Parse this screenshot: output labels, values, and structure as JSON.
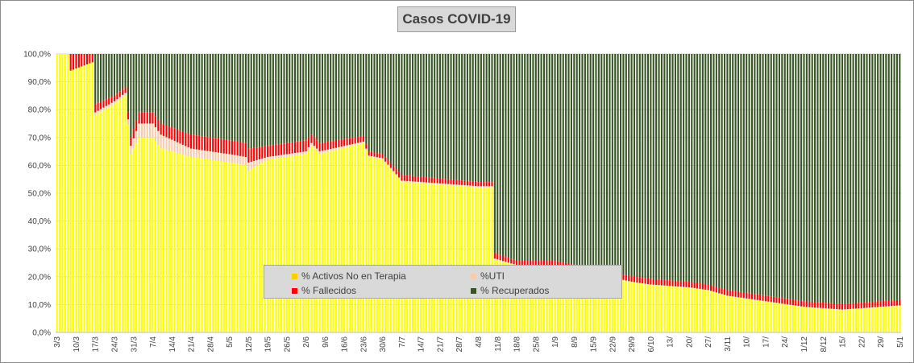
{
  "chart_data": {
    "type": "bar",
    "stacked": true,
    "normalized": true,
    "title": "Casos  COVID-19",
    "xlabel": "",
    "ylabel": "",
    "ylim": [
      0,
      100
    ],
    "yticks": [
      "0,0%",
      "10,0%",
      "20,0%",
      "30,0%",
      "40,0%",
      "50,0%",
      "60,0%",
      "70,0%",
      "80,0%",
      "90,0%",
      "100,0%"
    ],
    "x_tick_labels": [
      "3/3",
      "10/3",
      "17/3",
      "24/3",
      "31/3",
      "7/4",
      "14/4",
      "21/4",
      "28/4",
      "5/5",
      "12/5",
      "19/5",
      "26/5",
      "2/6",
      "9/6",
      "16/6",
      "23/6",
      "30/6",
      "7/7",
      "14/7",
      "21/7",
      "28/7",
      "4/8",
      "11/8",
      "18/8",
      "25/8",
      "1/9",
      "8/9",
      "15/9",
      "22/9",
      "29/9",
      "6/10",
      "13/",
      "20/",
      "27/",
      "3/11",
      "10/",
      "17/",
      "24/",
      "1/12",
      "8/12",
      "15/",
      "22/",
      "29/",
      "5/1"
    ],
    "days_per_tick": 7,
    "series": [
      {
        "name": "% Activos No en Terapia",
        "color": "#ffff00"
      },
      {
        "name": "%UTI",
        "color": "#f8cbad"
      },
      {
        "name": "% Fallecidos",
        "color": "#ff0000"
      },
      {
        "name": "% Recuperados",
        "color": "#375623"
      }
    ],
    "control_points": [
      {
        "x": "3/3",
        "activos": 100,
        "uti": 0,
        "fallecidos": 0
      },
      {
        "x": "7/3",
        "activos": 100,
        "uti": 0,
        "fallecidos": 0
      },
      {
        "x": "8/3",
        "activos": 94,
        "uti": 0,
        "fallecidos": 6
      },
      {
        "x": "16/3",
        "activos": 97,
        "uti": 0,
        "fallecidos": 3
      },
      {
        "x": "17/3",
        "activos": 78,
        "uti": 1,
        "fallecidos": 3
      },
      {
        "x": "24/3",
        "activos": 82,
        "uti": 1,
        "fallecidos": 2
      },
      {
        "x": "28/3",
        "activos": 85,
        "uti": 1,
        "fallecidos": 2
      },
      {
        "x": "30/3",
        "activos": 64,
        "uti": 3,
        "fallecidos": 3
      },
      {
        "x": "2/4",
        "activos": 70,
        "uti": 5,
        "fallecidos": 4
      },
      {
        "x": "7/4",
        "activos": 70,
        "uti": 5,
        "fallecidos": 4
      },
      {
        "x": "10/4",
        "activos": 66,
        "uti": 5,
        "fallecidos": 4
      },
      {
        "x": "21/4",
        "activos": 63,
        "uti": 3,
        "fallecidos": 5
      },
      {
        "x": "5/5",
        "activos": 61,
        "uti": 3,
        "fallecidos": 5
      },
      {
        "x": "11/5",
        "activos": 60,
        "uti": 3,
        "fallecidos": 5
      },
      {
        "x": "12/5",
        "activos": 58,
        "uti": 3,
        "fallecidos": 5
      },
      {
        "x": "19/5",
        "activos": 62,
        "uti": 1,
        "fallecidos": 4
      },
      {
        "x": "2/6",
        "activos": 64,
        "uti": 1,
        "fallecidos": 4
      },
      {
        "x": "4/6",
        "activos": 67,
        "uti": 1,
        "fallecidos": 3
      },
      {
        "x": "7/6",
        "activos": 64,
        "uti": 1,
        "fallecidos": 3
      },
      {
        "x": "23/6",
        "activos": 68,
        "uti": 0.5,
        "fallecidos": 2
      },
      {
        "x": "25/6",
        "activos": 63,
        "uti": 0.5,
        "fallecidos": 1.5
      },
      {
        "x": "30/6",
        "activos": 62,
        "uti": 0.5,
        "fallecidos": 1.5
      },
      {
        "x": "7/7",
        "activos": 54,
        "uti": 0.5,
        "fallecidos": 2
      },
      {
        "x": "4/8",
        "activos": 52,
        "uti": 0.5,
        "fallecidos": 1.5
      },
      {
        "x": "9/8",
        "activos": 52,
        "uti": 0.5,
        "fallecidos": 1.5
      },
      {
        "x": "10/8",
        "activos": 26,
        "uti": 0.5,
        "fallecidos": 2
      },
      {
        "x": "18/8",
        "activos": 24,
        "uti": 0.2,
        "fallecidos": 1.5
      },
      {
        "x": "1/9",
        "activos": 24,
        "uti": 0.2,
        "fallecidos": 1.5
      },
      {
        "x": "29/9",
        "activos": 18,
        "uti": 0.2,
        "fallecidos": 2
      },
      {
        "x": "6/10",
        "activos": 17,
        "uti": 0.2,
        "fallecidos": 2
      },
      {
        "x": "20/10",
        "activos": 16,
        "uti": 0.2,
        "fallecidos": 2
      },
      {
        "x": "27/10",
        "activos": 15,
        "uti": 0.2,
        "fallecidos": 2
      },
      {
        "x": "3/11",
        "activos": 13,
        "uti": 0.2,
        "fallecidos": 2
      },
      {
        "x": "17/11",
        "activos": 11,
        "uti": 0.2,
        "fallecidos": 2
      },
      {
        "x": "1/12",
        "activos": 9,
        "uti": 0.2,
        "fallecidos": 2
      },
      {
        "x": "15/12",
        "activos": 8,
        "uti": 0.2,
        "fallecidos": 2
      },
      {
        "x": "29/12",
        "activos": 9,
        "uti": 0.2,
        "fallecidos": 2
      },
      {
        "x": "5/1",
        "activos": 9.5,
        "uti": 0.2,
        "fallecidos": 2
      }
    ],
    "legend": {
      "position": "bottom-center-inside"
    }
  }
}
